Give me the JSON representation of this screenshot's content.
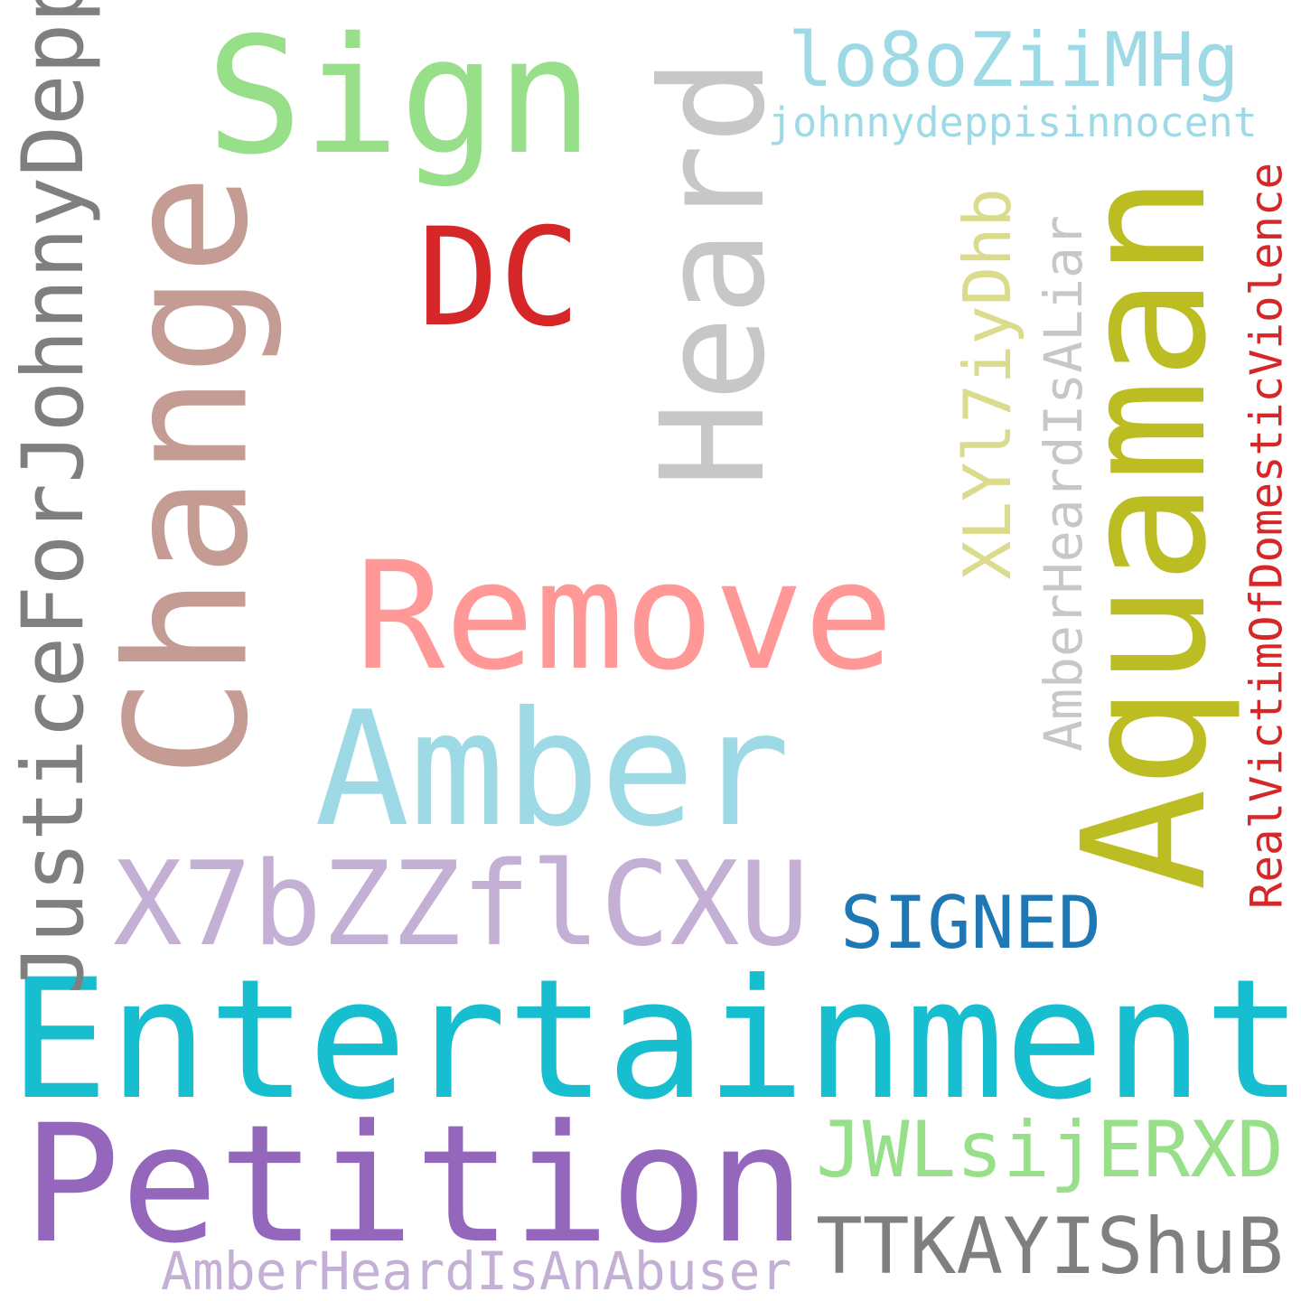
{
  "words": {
    "sign": "Sign",
    "lo8o": "lo8oZiiMHg",
    "jdi": "johnnydeppisinnocent",
    "dc": "DC",
    "heard": "Heard",
    "change": "Change",
    "justice": "JusticeForJohnnyDepp",
    "xly": "XLYl7iyDhb",
    "ahial": "AmberHeardIsALiar",
    "aquaman": "Aquaman",
    "real": "RealVictimOfDomesticViolence",
    "remove": "Remove",
    "amber": "Amber",
    "x7b": "X7bZZflCXU",
    "signed": "SIGNED",
    "entertainment": "Entertainment",
    "petition": "Petition",
    "jwl": "JWLsijERXD",
    "ttk": "TTKAYIShuB",
    "ahiaa": "AmberHeardIsAnAbuser"
  },
  "colors": {
    "sign": "#98df8a",
    "lo8o": "#9edae5",
    "jdi": "#9edae5",
    "dc": "#d62728",
    "heard": "#c7c7c7",
    "change": "#c49c94",
    "justice": "#7f7f7f",
    "xly": "#dbdb8d",
    "ahial": "#c7c7c7",
    "aquaman": "#bcbd22",
    "real": "#d62728",
    "remove": "#ff9896",
    "amber": "#9edae5",
    "x7b": "#c5b0d5",
    "signed": "#1f77b4",
    "entertainment": "#17becf",
    "petition": "#9467bd",
    "jwl": "#98df8a",
    "ttk": "#7f7f7f",
    "ahiaa": "#c5b0d5"
  }
}
